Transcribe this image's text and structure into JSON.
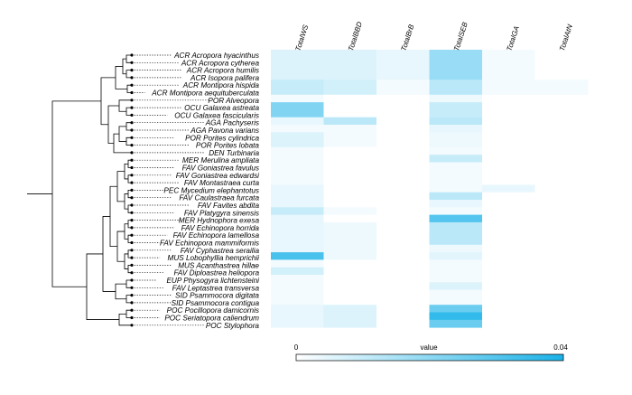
{
  "chart_data": {
    "type": "heatmap",
    "columns": [
      "TotalWS",
      "TotalBBD",
      "TotalBrB",
      "TotalSEB",
      "TotalGA",
      "TotalAtN"
    ],
    "rows": [
      "ACR Acropora hyacinthus",
      "ACR Acropora cytherea",
      "ACR Acropora humilis",
      "ACR Isopora palifera",
      "ACR Montipora hispida",
      "ACR Montipora aequituberculata",
      "POR Alveopora",
      "OCU Galaxea astreata",
      "OCU Galaxea fascicularis",
      "AGA Pachyseris",
      "AGA Pavona varians",
      "POR Porites cylindrica",
      "POR Porites lobata",
      "DEN Turbinaria",
      "MER Merulina ampliata",
      "FAV Goniastrea favulus",
      "FAV Goniastrea edwardsi",
      "FAV Montastraea curta",
      "PEC Mycedium elephantotus",
      "FAV Caulastraea furcata",
      "FAV Favites abdita",
      "FAV Platygyra sinensis",
      "MER Hydnophora exesa",
      "FAV Echinopora horrida",
      "FAV Echinopora lamellosa",
      "FAV Echinopora mammiformis",
      "FAV Cyphastrea serailia",
      "MUS Lobophyllia hemprichii",
      "MUS Acanthastrea hillae",
      "FAV Diploastrea heliopora",
      "EUP Physogyra lichtensteini",
      "FAV Leptastrea transversa",
      "SID Psammocora digitata",
      "SID Psammocora contigua",
      "POC Pocillopora damicornis",
      "POC Seriatopora caliendrum",
      "POC Stylophora"
    ],
    "values": [
      [
        0.006,
        0.006,
        0.004,
        0.018,
        0.002,
        0.0
      ],
      [
        0.006,
        0.006,
        0.004,
        0.018,
        0.002,
        0.0
      ],
      [
        0.006,
        0.006,
        0.004,
        0.018,
        0.002,
        0.0
      ],
      [
        0.006,
        0.006,
        0.004,
        0.018,
        0.002,
        0.0
      ],
      [
        0.01,
        0.008,
        0.002,
        0.012,
        0.002,
        0.002
      ],
      [
        0.01,
        0.008,
        0.002,
        0.012,
        0.002,
        0.002
      ],
      [
        0.002,
        0.0,
        0.0,
        0.003,
        0.0,
        0.0
      ],
      [
        0.022,
        0.0,
        0.0,
        0.01,
        0.0,
        0.0
      ],
      [
        0.022,
        0.0,
        0.0,
        0.01,
        0.0,
        0.0
      ],
      [
        0.004,
        0.012,
        0.0,
        0.012,
        0.0,
        0.0
      ],
      [
        0.002,
        0.002,
        0.0,
        0.004,
        0.0,
        0.0
      ],
      [
        0.006,
        0.002,
        0.0,
        0.003,
        0.0,
        0.0
      ],
      [
        0.006,
        0.002,
        0.0,
        0.003,
        0.0,
        0.0
      ],
      [
        0.002,
        0.0,
        0.0,
        0.002,
        0.0,
        0.0
      ],
      [
        0.002,
        0.0,
        0.0,
        0.01,
        0.0,
        0.0
      ],
      [
        0.002,
        0.0,
        0.0,
        0.002,
        0.0,
        0.0
      ],
      [
        0.002,
        0.0,
        0.0,
        0.002,
        0.0,
        0.0
      ],
      [
        0.002,
        0.0,
        0.0,
        0.002,
        0.0,
        0.0
      ],
      [
        0.004,
        0.0,
        0.0,
        0.002,
        0.004,
        0.0
      ],
      [
        0.004,
        0.0,
        0.0,
        0.012,
        0.0,
        0.0
      ],
      [
        0.004,
        0.0,
        0.0,
        0.004,
        0.0,
        0.0
      ],
      [
        0.01,
        0.002,
        0.0,
        0.002,
        0.0,
        0.0
      ],
      [
        0.004,
        0.0,
        0.0,
        0.03,
        0.0,
        0.0
      ],
      [
        0.004,
        0.003,
        0.0,
        0.012,
        0.0,
        0.0
      ],
      [
        0.004,
        0.003,
        0.0,
        0.012,
        0.0,
        0.0
      ],
      [
        0.004,
        0.003,
        0.0,
        0.012,
        0.0,
        0.0
      ],
      [
        0.004,
        0.003,
        0.0,
        0.003,
        0.0,
        0.0
      ],
      [
        0.032,
        0.003,
        0.0,
        0.005,
        0.0,
        0.0
      ],
      [
        0.002,
        0.0,
        0.0,
        0.002,
        0.0,
        0.0
      ],
      [
        0.008,
        0.0,
        0.0,
        0.002,
        0.0,
        0.0
      ],
      [
        0.002,
        0.0,
        0.0,
        0.002,
        0.0,
        0.0
      ],
      [
        0.002,
        0.0,
        0.0,
        0.006,
        0.0,
        0.0
      ],
      [
        0.002,
        0.0,
        0.0,
        0.002,
        0.0,
        0.0
      ],
      [
        0.002,
        0.0,
        0.0,
        0.002,
        0.0,
        0.0
      ],
      [
        0.004,
        0.006,
        0.0,
        0.026,
        0.0,
        0.0
      ],
      [
        0.004,
        0.006,
        0.0,
        0.036,
        0.0,
        0.0
      ],
      [
        0.004,
        0.006,
        0.0,
        0.026,
        0.0,
        0.0
      ]
    ],
    "legend": {
      "label": "value",
      "min_label": "0",
      "max_label": "0.04",
      "min": 0,
      "max": 0.04,
      "position": "bottom"
    },
    "colors": {
      "low": "#ffffff",
      "high": "#1ab2e8",
      "text": "#000000",
      "tree": "#000000"
    },
    "dendrogram": "hierarchical clustering tree on left"
  }
}
